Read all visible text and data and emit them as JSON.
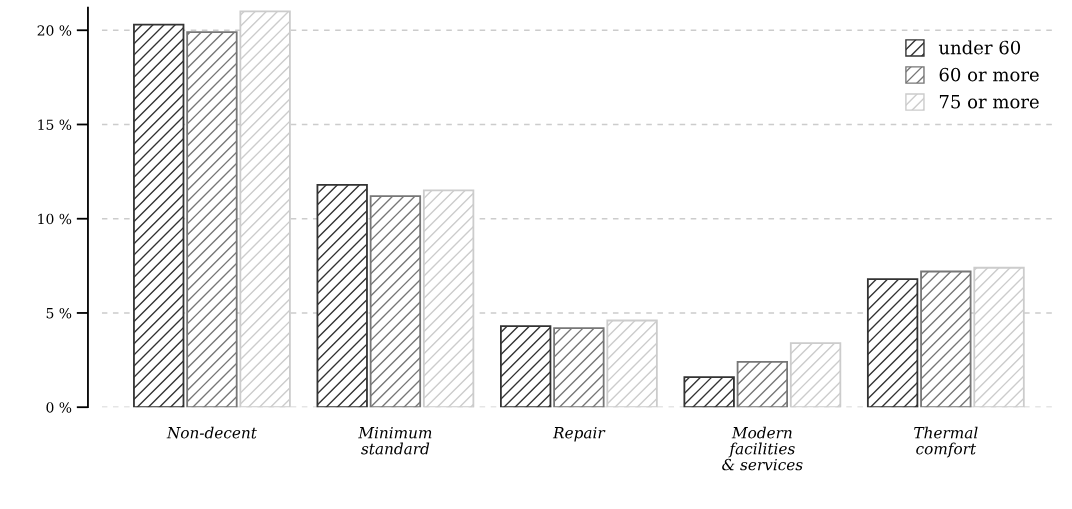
{
  "chart_data": {
    "type": "bar",
    "categories": [
      "Non-decent",
      "Minimum\nstandard",
      "Repair",
      "Modern\nfacilities\n& services",
      "Thermal\ncomfort"
    ],
    "series": [
      {
        "name": "under 60",
        "color": "#333333",
        "values": [
          20.3,
          11.8,
          4.3,
          1.6,
          6.8
        ]
      },
      {
        "name": "60 or more",
        "color": "#777777",
        "values": [
          19.9,
          11.2,
          4.2,
          2.4,
          7.2
        ]
      },
      {
        "name": "75 or more",
        "color": "#cccccc",
        "values": [
          21.0,
          11.5,
          4.6,
          3.4,
          7.4
        ]
      }
    ],
    "ylim": [
      0,
      21.2
    ],
    "yticks": [
      {
        "value": 0,
        "label": "0 %"
      },
      {
        "value": 5,
        "label": "5 %"
      },
      {
        "value": 10,
        "label": "10 %"
      },
      {
        "value": 15,
        "label": "15 %"
      },
      {
        "value": 20,
        "label": "20 %"
      }
    ],
    "grid": "y",
    "legend": "top right"
  }
}
